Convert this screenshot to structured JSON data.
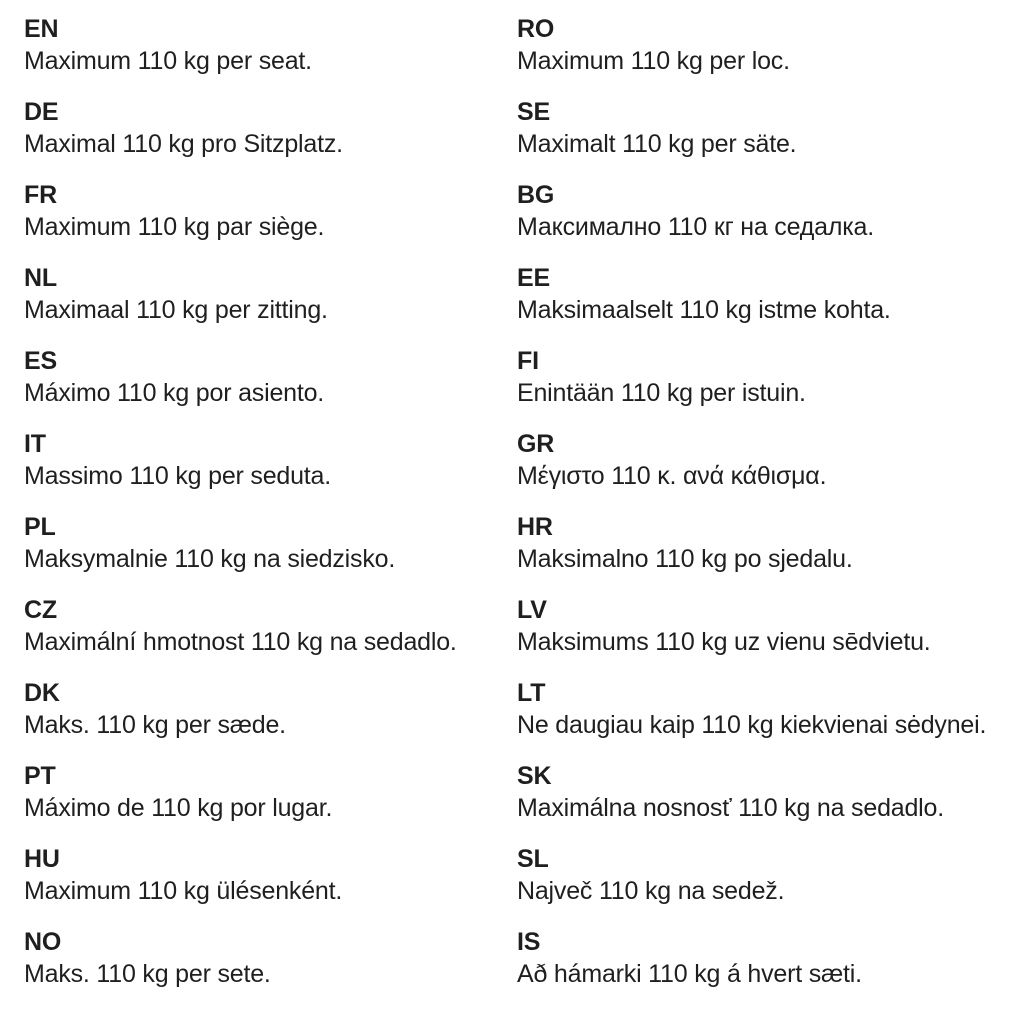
{
  "page": {
    "background_color": "#ffffff",
    "text_color": "#1f1f1f"
  },
  "columns": {
    "left": [
      {
        "code": "EN",
        "text": "Maximum 110 kg per seat."
      },
      {
        "code": "DE",
        "text": "Maximal 110 kg pro Sitzplatz."
      },
      {
        "code": "FR",
        "text": "Maximum 110 kg par siège."
      },
      {
        "code": "NL",
        "text": "Maximaal 110 kg per zitting."
      },
      {
        "code": "ES",
        "text": "Máximo 110 kg por asiento."
      },
      {
        "code": "IT",
        "text": "Massimo 110 kg per seduta."
      },
      {
        "code": "PL",
        "text": "Maksymalnie 110 kg na siedzisko."
      },
      {
        "code": "CZ",
        "text": "Maximální hmotnost 110 kg na sedadlo."
      },
      {
        "code": "DK",
        "text": "Maks. 110 kg per sæde."
      },
      {
        "code": "PT",
        "text": "Máximo de 110 kg por lugar."
      },
      {
        "code": "HU",
        "text": "Maximum 110 kg ülésenként."
      },
      {
        "code": "NO",
        "text": "Maks. 110 kg per sete."
      }
    ],
    "right": [
      {
        "code": "RO",
        "text": "Maximum 110 kg per loc."
      },
      {
        "code": "SE",
        "text": "Maximalt 110 kg per säte."
      },
      {
        "code": "BG",
        "text": "Максимално 110 кг на седалка."
      },
      {
        "code": "EE",
        "text": "Maksimaalselt 110 kg istme kohta."
      },
      {
        "code": "FI",
        "text": "Enintään 110 kg per istuin."
      },
      {
        "code": "GR",
        "text": "Μέγιστο 110 κ. ανά κάθισμα."
      },
      {
        "code": "HR",
        "text": "Maksimalno 110 kg po sjedalu."
      },
      {
        "code": "LV",
        "text": "Maksimums 110 kg uz vienu sēdvietu."
      },
      {
        "code": "LT",
        "text": "Ne daugiau kaip 110 kg kiekvienai sėdynei."
      },
      {
        "code": "SK",
        "text": "Maximálna nosnosť 110 kg na sedadlo."
      },
      {
        "code": "SL",
        "text": "Največ 110 kg na sedež."
      },
      {
        "code": "IS",
        "text": "Að hámarki 110 kg á hvert sæti."
      }
    ]
  }
}
